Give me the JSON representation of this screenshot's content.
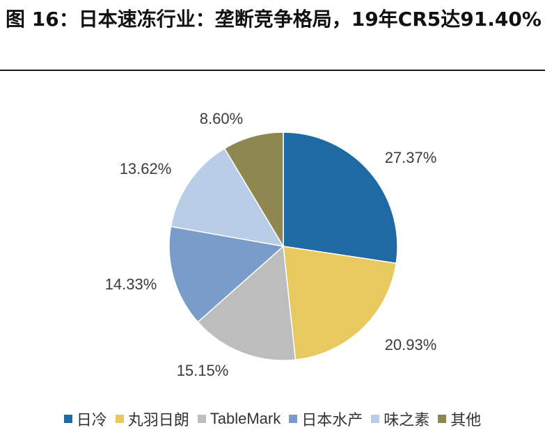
{
  "title": "图 16：日本速冻行业：垄断竞争格局，19年CR5达91.40%",
  "chart_data": {
    "type": "pie",
    "title": "",
    "start_angle_deg": 0,
    "direction": "clockwise",
    "slices": [
      {
        "label": "日冷",
        "value": 27.37,
        "value_label": "27.37%",
        "color": "#1F6AA5"
      },
      {
        "label": "丸羽日朗",
        "value": 20.93,
        "value_label": "20.93%",
        "color": "#E7C95F"
      },
      {
        "label": "TableMark",
        "value": 15.15,
        "value_label": "15.15%",
        "color": "#BDBDBD"
      },
      {
        "label": "日本水产",
        "value": 14.33,
        "value_label": "14.33%",
        "color": "#7A9CCB"
      },
      {
        "label": "味之素",
        "value": 13.62,
        "value_label": "13.62%",
        "color": "#B9CDE6"
      },
      {
        "label": "其他",
        "value": 8.6,
        "value_label": "8.60%",
        "color": "#8F8750"
      }
    ],
    "legend_position": "bottom"
  }
}
